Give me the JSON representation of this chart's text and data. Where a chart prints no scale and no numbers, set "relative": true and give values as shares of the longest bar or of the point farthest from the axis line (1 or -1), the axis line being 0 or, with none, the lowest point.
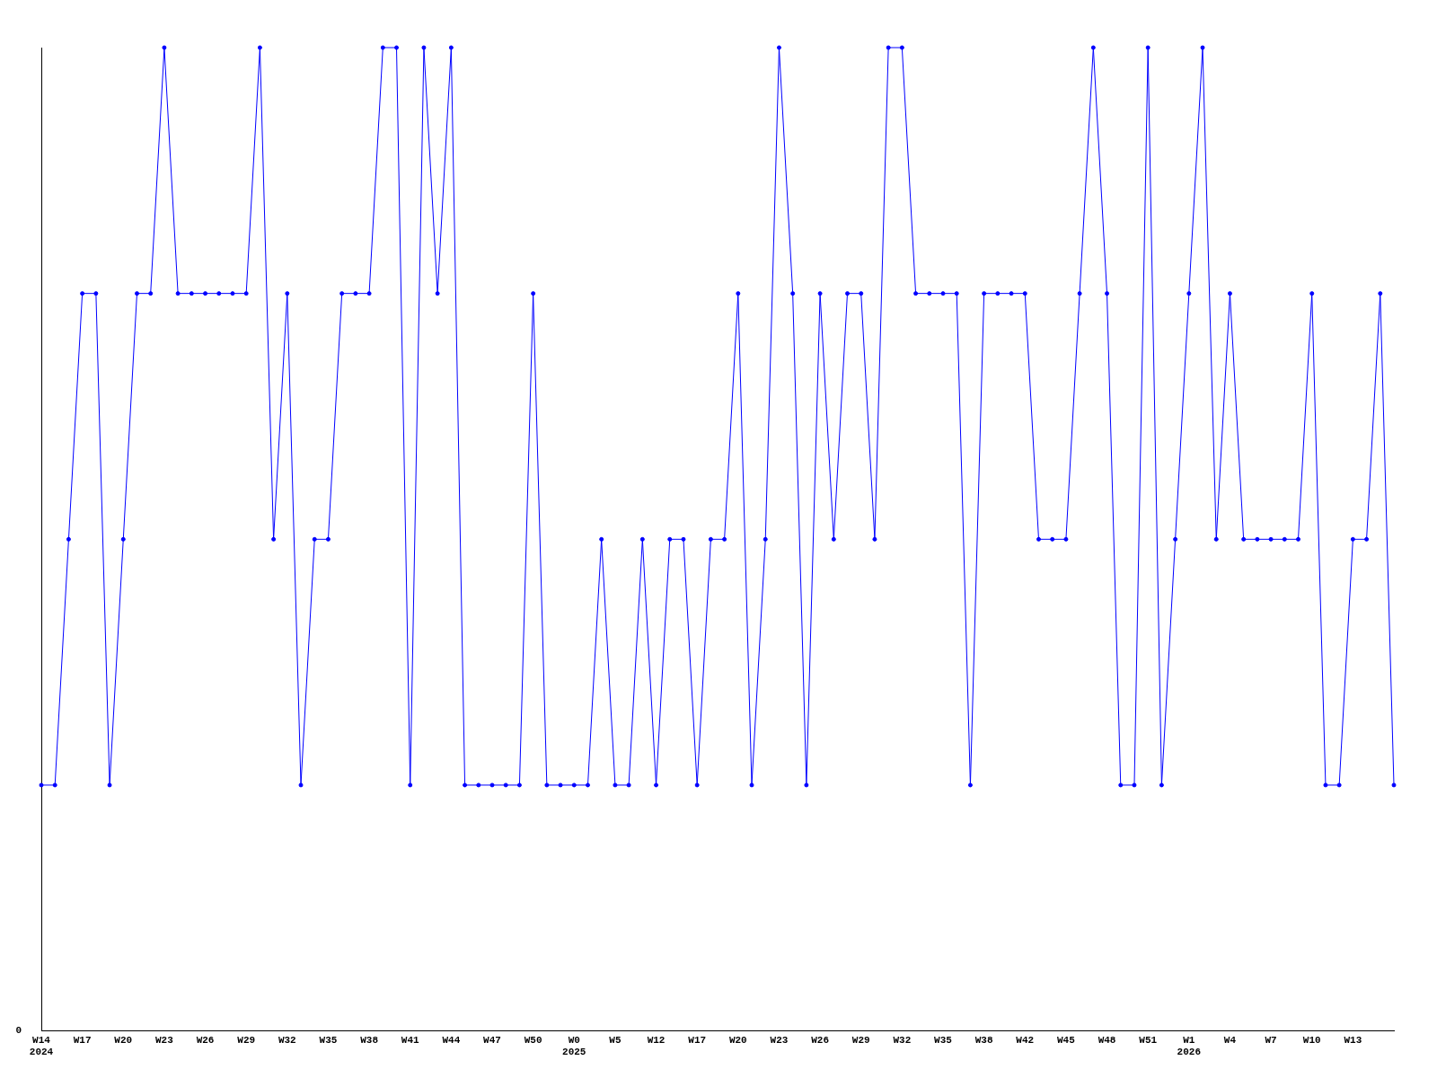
{
  "chart_data": {
    "type": "line",
    "relative": true,
    "color": "#0000ff",
    "marker": "circle",
    "grid": false,
    "legend": false,
    "annotations": [
      "0"
    ],
    "categories": [
      "W14\n2024",
      null,
      null,
      "W17",
      null,
      null,
      "W20",
      null,
      null,
      "W23",
      null,
      null,
      "W26",
      null,
      null,
      "W29",
      null,
      null,
      "W32",
      null,
      null,
      "W35",
      null,
      null,
      "W38",
      null,
      null,
      "W41",
      null,
      null,
      "W44",
      null,
      null,
      "W47",
      null,
      null,
      "W50",
      null,
      null,
      "W0\n2025",
      null,
      null,
      "W5",
      null,
      null,
      "W12",
      null,
      null,
      "W17",
      null,
      null,
      "W20",
      null,
      null,
      "W23",
      null,
      null,
      "W26",
      null,
      null,
      "W29",
      null,
      null,
      "W32",
      null,
      null,
      "W35",
      null,
      null,
      "W38",
      null,
      null,
      "W42",
      null,
      null,
      "W45",
      null,
      null,
      "W48",
      null,
      null,
      "W51",
      null,
      null,
      "W1\n2026",
      null,
      null,
      "W4",
      null,
      null,
      "W7",
      null,
      null,
      "W10",
      null,
      null,
      "W13",
      null,
      null,
      null
    ],
    "values": [
      0.25,
      0.25,
      0.5,
      0.75,
      0.75,
      0.25,
      0.5,
      0.75,
      0.75,
      1,
      0.75,
      0.75,
      0.75,
      0.75,
      0.75,
      0.75,
      1,
      0.5,
      0.75,
      0.25,
      0.5,
      0.5,
      0.75,
      0.75,
      0.75,
      1,
      1,
      0.25,
      1,
      0.75,
      1,
      0.25,
      0.25,
      0.25,
      0.25,
      0.25,
      0.75,
      0.25,
      0.25,
      0.25,
      0.25,
      0.5,
      0.25,
      0.25,
      0.5,
      0.25,
      0.5,
      0.5,
      0.25,
      0.5,
      0.5,
      0.75,
      0.25,
      0.5,
      1,
      0.75,
      0.25,
      0.75,
      0.5,
      0.75,
      0.75,
      0.5,
      1,
      1,
      0.75,
      0.75,
      0.75,
      0.75,
      0.25,
      0.75,
      0.75,
      0.75,
      0.75,
      0.5,
      0.5,
      0.5,
      0.75,
      1,
      0.75,
      0.25,
      0.25,
      1,
      0.25,
      0.5,
      0.75,
      1,
      0.5,
      0.75,
      0.5,
      0.5,
      0.5,
      0.5,
      0.5,
      0.75,
      0.25,
      0.25,
      0.5,
      0.5,
      0.75,
      0.25
    ]
  }
}
